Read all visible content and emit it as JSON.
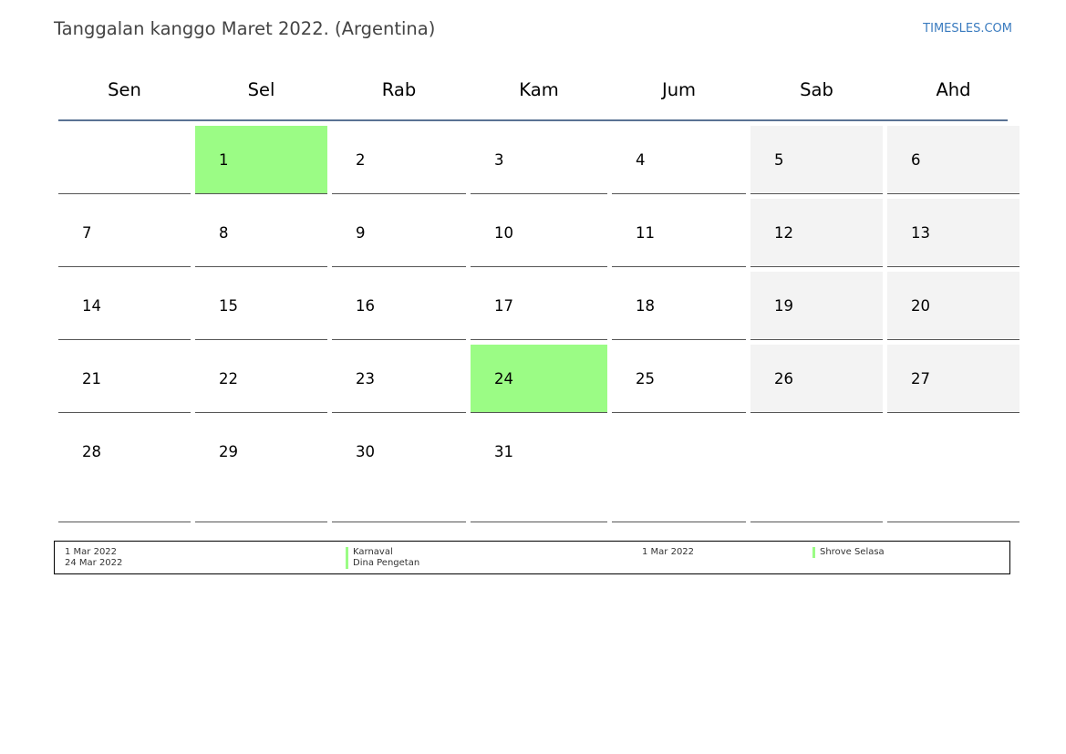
{
  "title": "Tanggalan kanggo Maret 2022. (Argentina)",
  "site": "TIMESLES.COM",
  "colors": {
    "holiday": "#9bfc85",
    "weekend": "#f3f3f3",
    "header_rule": "#5a7394",
    "site_link": "#3a7bbf"
  },
  "weekdays": [
    "Sen",
    "Sel",
    "Rab",
    "Kam",
    "Jum",
    "Sab",
    "Ahd"
  ],
  "weeks": [
    [
      "",
      "1",
      "2",
      "3",
      "4",
      "5",
      "6"
    ],
    [
      "7",
      "8",
      "9",
      "10",
      "11",
      "12",
      "13"
    ],
    [
      "14",
      "15",
      "16",
      "17",
      "18",
      "19",
      "20"
    ],
    [
      "21",
      "22",
      "23",
      "24",
      "25",
      "26",
      "27"
    ],
    [
      "28",
      "29",
      "30",
      "31",
      "",
      "",
      ""
    ]
  ],
  "holiday_days": [
    "1",
    "24"
  ],
  "legend": {
    "col1_dates": [
      "1 Mar 2022",
      "24 Mar 2022"
    ],
    "col1_names": [
      "Karnaval",
      "Dina Pengetan"
    ],
    "col2_dates": [
      "1 Mar 2022"
    ],
    "col2_names": [
      "Shrove Selasa"
    ]
  }
}
